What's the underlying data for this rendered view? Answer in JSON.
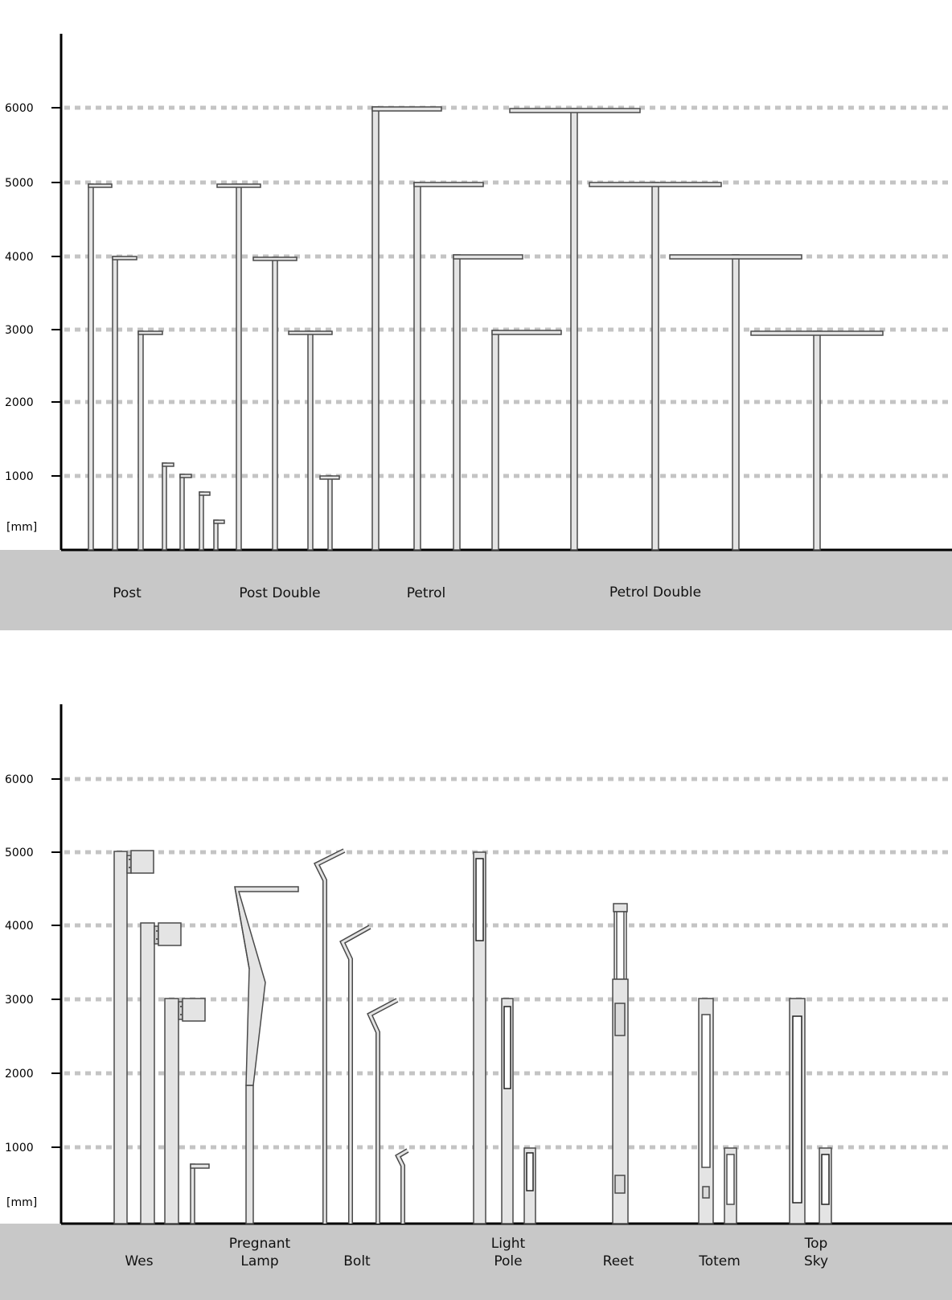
{
  "unit_label": "[mm]",
  "y_ticks": [
    1000,
    2000,
    3000,
    4000,
    5000,
    6000
  ],
  "colors": {
    "band": "#c8c8c8",
    "pole_fill": "#e4e4e4",
    "pole_stroke": "#4a4a4a",
    "grid": "#c4c4c4"
  },
  "panels": [
    {
      "name": "top-panel",
      "categories": [
        {
          "id": "post",
          "lines": [
            "Post"
          ],
          "heights_mm": [
            5000,
            4000,
            3000,
            1150,
            1000,
            780,
            400
          ]
        },
        {
          "id": "post-double",
          "lines": [
            "Post Double"
          ],
          "heights_mm": [
            5000,
            4000,
            3000,
            1000
          ]
        },
        {
          "id": "petrol",
          "lines": [
            "Petrol"
          ],
          "heights_mm": [
            6000,
            5000,
            4000,
            3000
          ]
        },
        {
          "id": "petrol-double",
          "lines": [
            "Petrol Double"
          ],
          "heights_mm": [
            6000,
            5000,
            4000,
            3000
          ]
        }
      ]
    },
    {
      "name": "bottom-panel",
      "categories": [
        {
          "id": "wes",
          "lines": [
            "Wes"
          ],
          "heights_mm": [
            5000,
            4000,
            3000,
            780
          ]
        },
        {
          "id": "pregnant-lamp",
          "lines": [
            "Pregnant",
            "Lamp"
          ],
          "heights_mm": [
            4550
          ]
        },
        {
          "id": "bolt",
          "lines": [
            "Bolt"
          ],
          "heights_mm": [
            5000,
            4000,
            3000,
            1000
          ]
        },
        {
          "id": "light-pole",
          "lines": [
            "Light",
            "Pole"
          ],
          "heights_mm": [
            5000,
            3000,
            1000
          ]
        },
        {
          "id": "reet",
          "lines": [
            "Reet"
          ],
          "heights_mm": [
            4250
          ]
        },
        {
          "id": "totem",
          "lines": [
            "Totem"
          ],
          "heights_mm": [
            3000,
            1000
          ]
        },
        {
          "id": "top-sky",
          "lines": [
            "Top",
            "Sky"
          ],
          "heights_mm": [
            3000,
            1000
          ]
        }
      ]
    }
  ]
}
